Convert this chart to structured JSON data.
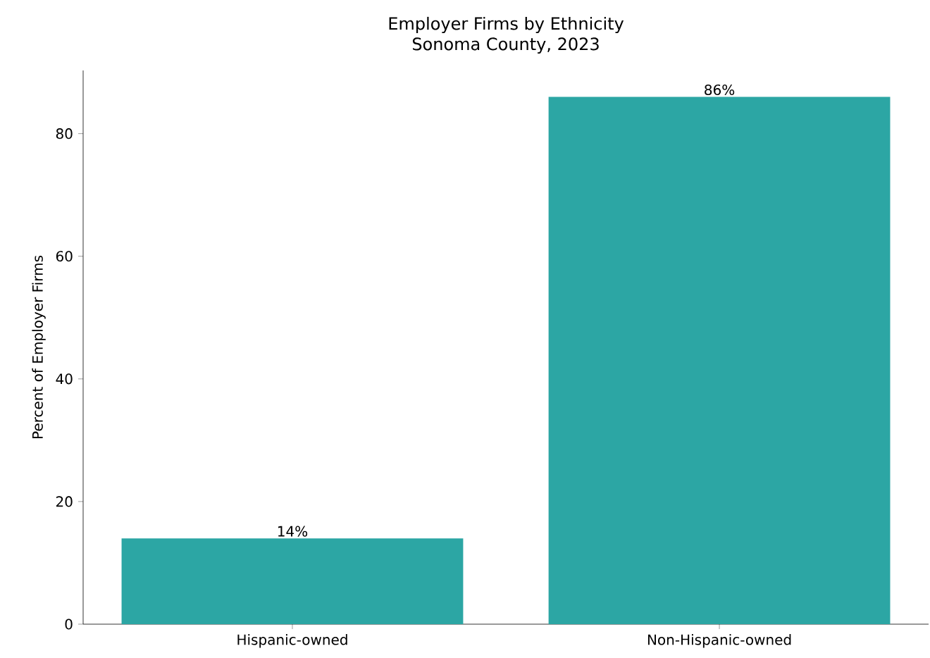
{
  "chart_data": {
    "type": "bar",
    "title": "Employer Firms by Ethnicity",
    "subtitle": "Sonoma County, 2023",
    "ylabel": "Percent of Employer Firms",
    "categories": [
      "Hispanic-owned",
      "Non-Hispanic-owned"
    ],
    "values": [
      14,
      86
    ],
    "color": "#2ca6a4",
    "value_labels": [
      "14%",
      "86%"
    ],
    "ylim": [
      0,
      90.3
    ],
    "yticks": [
      0,
      20,
      40,
      60,
      80
    ]
  }
}
